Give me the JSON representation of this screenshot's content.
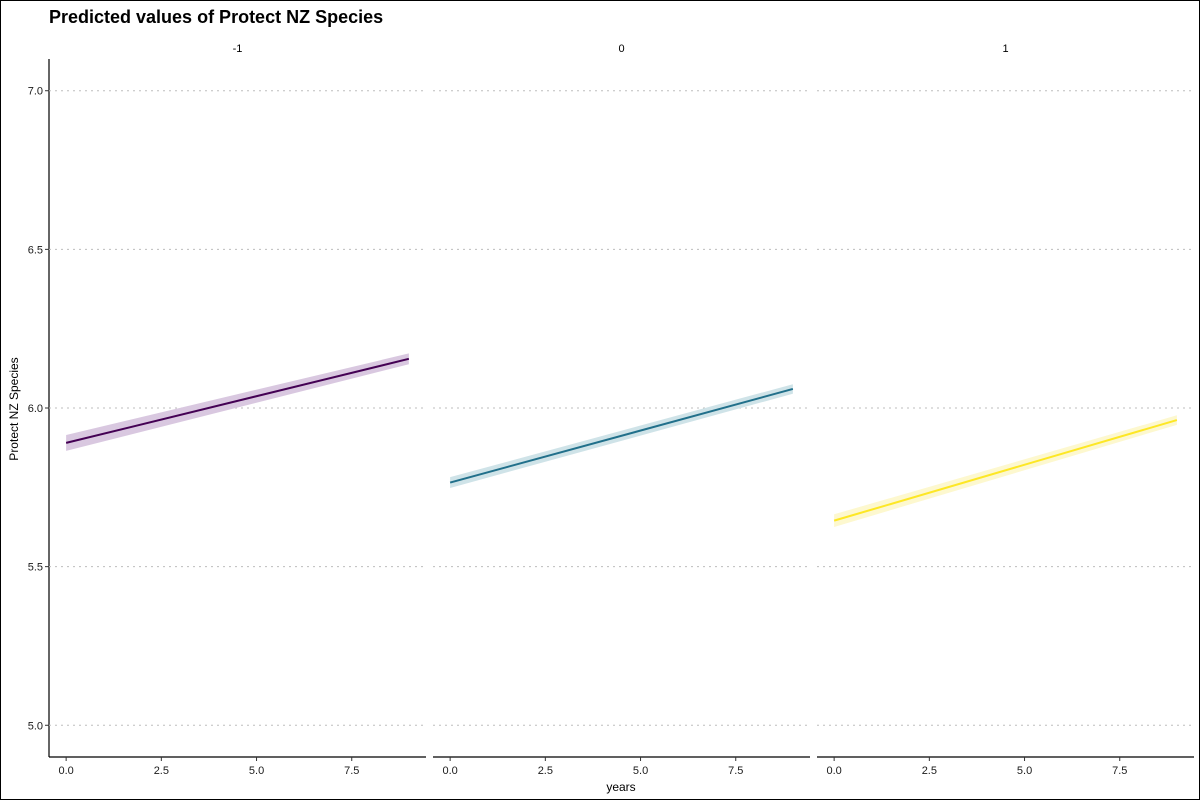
{
  "chart_data": {
    "type": "line",
    "title": "Predicted values of Protect NZ Species",
    "xlabel": "years",
    "ylabel": "Protect NZ Species",
    "xlim": [
      -0.45,
      9.45
    ],
    "ylim": [
      4.9,
      7.1
    ],
    "x_ticks": [
      0,
      2.5,
      5,
      7.5
    ],
    "x_tick_labels": [
      "0.0",
      "2.5",
      "5.0",
      "7.5"
    ],
    "y_ticks": [
      5.0,
      5.5,
      6.0,
      6.5,
      7.0
    ],
    "y_tick_labels": [
      "5.0",
      "5.5",
      "6.0",
      "6.5",
      "7.0"
    ],
    "grid": "horizontal dotted",
    "panels": [
      {
        "strip_label": "-1",
        "color": "#440154",
        "band_color": "#d9c8e0",
        "x": [
          0,
          9
        ],
        "y": [
          5.89,
          6.155
        ],
        "ci_low": [
          5.865,
          6.138
        ],
        "ci_high": [
          5.915,
          6.172
        ]
      },
      {
        "strip_label": "0",
        "color": "#21708b",
        "band_color": "#cfe3e8",
        "x": [
          0,
          9
        ],
        "y": [
          5.765,
          6.06
        ],
        "ci_low": [
          5.748,
          6.045
        ],
        "ci_high": [
          5.782,
          6.075
        ]
      },
      {
        "strip_label": "1",
        "color": "#fde725",
        "band_color": "#fdf8cf",
        "x": [
          0,
          9
        ],
        "y": [
          5.645,
          5.962
        ],
        "ci_low": [
          5.625,
          5.947
        ],
        "ci_high": [
          5.665,
          5.977
        ]
      }
    ]
  }
}
